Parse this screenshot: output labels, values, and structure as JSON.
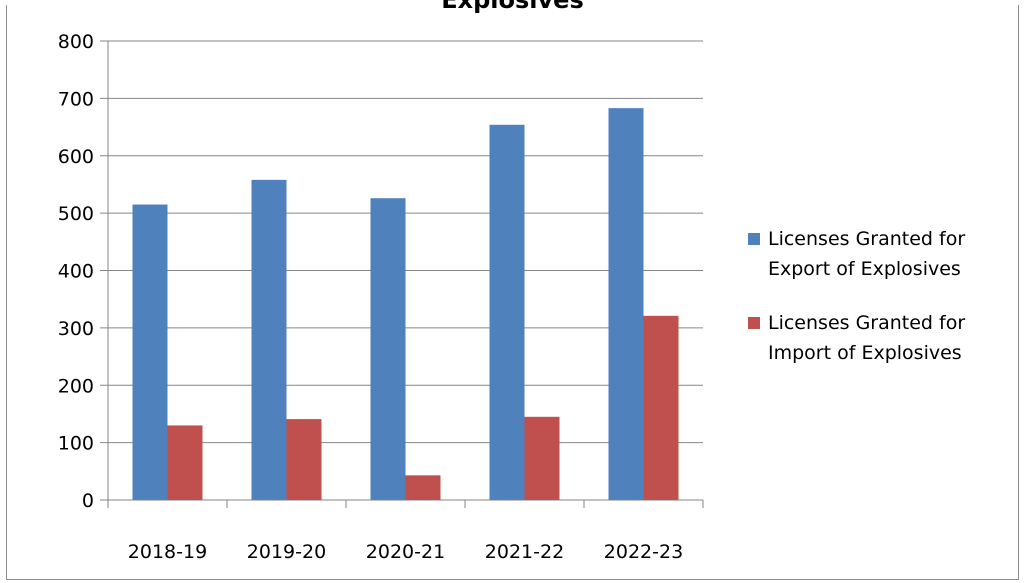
{
  "chart_data": {
    "type": "bar",
    "title": "Explosives",
    "categories": [
      "2018-19",
      "2019-20",
      "2020-21",
      "2021-22",
      "2022-23"
    ],
    "series": [
      {
        "name": "Licenses Granted for Export of Explosives",
        "legend_lines": [
          "Licenses Granted for",
          "Export of Explosives"
        ],
        "color": "#4f81bd",
        "values": [
          515,
          558,
          526,
          654,
          683
        ]
      },
      {
        "name": "Licenses Granted for Import of Explosives",
        "legend_lines": [
          "Licenses Granted for",
          "Import of Explosives"
        ],
        "color": "#c0504d",
        "values": [
          130,
          141,
          43,
          145,
          321
        ]
      }
    ],
    "xlabel": "",
    "ylabel": "",
    "ylim": [
      0,
      800
    ],
    "yticks": [
      0,
      100,
      200,
      300,
      400,
      500,
      600,
      700,
      800
    ],
    "grid": true,
    "legend_position": "right"
  }
}
